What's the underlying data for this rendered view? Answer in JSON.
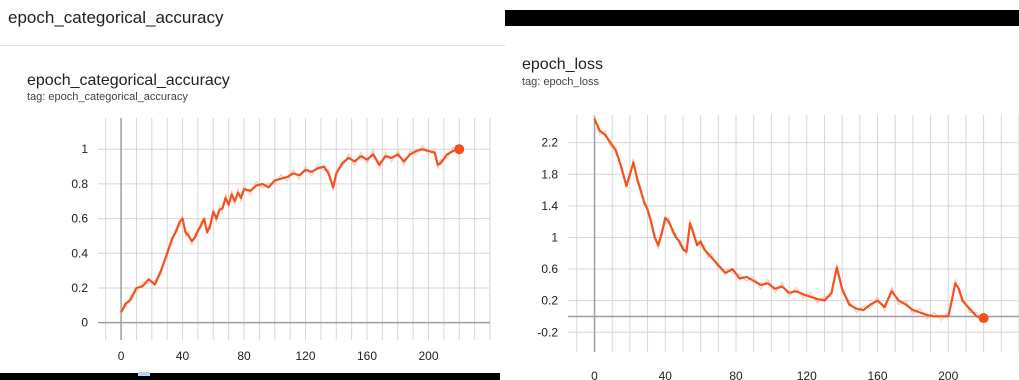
{
  "page": {
    "section_title": "epoch_categorical_accuracy"
  },
  "colors": {
    "line": "#f4511e",
    "raw_line": "#f9c3ae",
    "grid": "#d6d6d6",
    "axis": "#9e9e9e"
  },
  "chart_data": [
    {
      "type": "line",
      "title": "epoch_categorical_accuracy",
      "subtitle": "tag: epoch_categorical_accuracy",
      "xlim": [
        -15,
        240
      ],
      "ylim": [
        -0.1,
        1.18
      ],
      "x_ticks": [
        0,
        40,
        80,
        120,
        160,
        200
      ],
      "x_tick_labels": [
        "0",
        "40",
        "80",
        "120",
        "160",
        "200"
      ],
      "y_ticks": [
        0,
        0.2,
        0.4,
        0.6,
        0.8,
        1
      ],
      "y_tick_labels": [
        "0",
        "0.2",
        "0.4",
        "0.6",
        "0.8",
        "1"
      ],
      "grid": true,
      "series": [
        {
          "x": [
            0,
            3,
            6,
            10,
            14,
            18,
            22,
            26,
            30,
            33,
            36,
            38,
            40,
            42,
            44,
            46,
            48,
            50,
            52,
            54,
            56,
            58,
            60,
            62,
            64,
            66,
            68,
            70,
            72,
            74,
            76,
            78,
            80,
            84,
            88,
            92,
            96,
            100,
            104,
            108,
            112,
            116,
            120,
            124,
            128,
            132,
            135,
            138,
            140,
            144,
            148,
            152,
            156,
            160,
            164,
            168,
            172,
            176,
            180,
            184,
            188,
            192,
            196,
            200,
            204,
            206,
            208,
            212,
            216,
            220
          ],
          "y": [
            0.06,
            0.11,
            0.13,
            0.2,
            0.21,
            0.25,
            0.22,
            0.3,
            0.4,
            0.48,
            0.53,
            0.58,
            0.6,
            0.52,
            0.5,
            0.47,
            0.49,
            0.53,
            0.56,
            0.6,
            0.52,
            0.56,
            0.64,
            0.6,
            0.65,
            0.66,
            0.72,
            0.68,
            0.74,
            0.7,
            0.75,
            0.72,
            0.77,
            0.76,
            0.79,
            0.8,
            0.78,
            0.82,
            0.83,
            0.84,
            0.86,
            0.85,
            0.88,
            0.87,
            0.89,
            0.9,
            0.86,
            0.78,
            0.86,
            0.92,
            0.95,
            0.93,
            0.96,
            0.94,
            0.97,
            0.91,
            0.96,
            0.95,
            0.97,
            0.93,
            0.97,
            0.99,
            1.0,
            0.99,
            0.98,
            0.91,
            0.92,
            0.97,
            0.99,
            1.0
          ]
        }
      ]
    },
    {
      "type": "line",
      "title": "epoch_loss",
      "subtitle": "tag: epoch_loss",
      "xlim": [
        -15,
        240
      ],
      "ylim": [
        -0.45,
        2.55
      ],
      "x_ticks": [
        0,
        40,
        80,
        120,
        160,
        200
      ],
      "x_tick_labels": [
        "0",
        "40",
        "80",
        "120",
        "160",
        "200"
      ],
      "y_ticks": [
        -0.2,
        0.2,
        0.6,
        1,
        1.4,
        1.8,
        2.2
      ],
      "y_tick_labels": [
        "-0.2",
        "0.2",
        "0.6",
        "1",
        "1.4",
        "1.8",
        "2.2"
      ],
      "grid": true,
      "series": [
        {
          "x": [
            0,
            3,
            6,
            9,
            12,
            15,
            18,
            20,
            22,
            24,
            26,
            28,
            30,
            32,
            34,
            36,
            38,
            40,
            42,
            44,
            46,
            48,
            50,
            52,
            54,
            56,
            58,
            60,
            62,
            64,
            66,
            70,
            74,
            78,
            82,
            86,
            90,
            94,
            98,
            102,
            106,
            110,
            114,
            118,
            122,
            126,
            130,
            134,
            137,
            140,
            144,
            148,
            152,
            156,
            160,
            164,
            168,
            172,
            176,
            180,
            184,
            188,
            192,
            196,
            200,
            202,
            204,
            206,
            208,
            212,
            216,
            220
          ],
          "y": [
            2.5,
            2.35,
            2.3,
            2.2,
            2.1,
            1.9,
            1.65,
            1.8,
            1.95,
            1.75,
            1.6,
            1.45,
            1.35,
            1.2,
            1.0,
            0.9,
            1.05,
            1.25,
            1.2,
            1.1,
            1.0,
            0.95,
            0.85,
            0.82,
            1.18,
            1.05,
            0.9,
            0.95,
            0.85,
            0.8,
            0.75,
            0.65,
            0.55,
            0.6,
            0.48,
            0.5,
            0.45,
            0.4,
            0.42,
            0.35,
            0.38,
            0.3,
            0.32,
            0.28,
            0.25,
            0.22,
            0.2,
            0.3,
            0.62,
            0.35,
            0.15,
            0.1,
            0.08,
            0.15,
            0.2,
            0.12,
            0.32,
            0.2,
            0.15,
            0.08,
            0.05,
            0.02,
            0.0,
            0.0,
            0.0,
            0.2,
            0.42,
            0.35,
            0.2,
            0.1,
            0.0,
            -0.02
          ]
        }
      ]
    }
  ]
}
